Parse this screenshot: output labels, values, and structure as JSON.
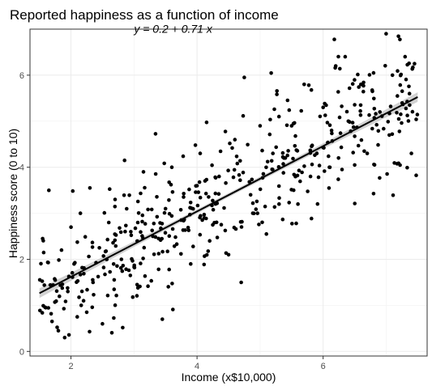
{
  "chart_data": {
    "type": "scatter",
    "title": "Reported happiness as a function of income",
    "xlabel": "Income (x$10,000)",
    "ylabel": "Happiness score (0 to 10)",
    "xlim": [
      1.35,
      7.65
    ],
    "ylim": [
      -0.1,
      7.0
    ],
    "x_ticks": [
      2,
      4,
      6
    ],
    "y_ticks": [
      0,
      2,
      4,
      6
    ],
    "x_tick_labels": [
      "2",
      "4",
      "6"
    ],
    "y_tick_labels": [
      "0",
      "2",
      "4",
      "6"
    ],
    "grid": true,
    "legend": "none",
    "annotation": "y = 0.2 + 0.71 x",
    "fit": {
      "intercept": 0.2,
      "slope": 0.71,
      "x_range": [
        1.5,
        7.5
      ],
      "color": "#000000",
      "band_color": "#bfbfbf"
    },
    "n_points": 498,
    "point_color": "#000000",
    "sample_points": [
      [
        1.55,
        2.45
      ],
      [
        1.6,
        0.95
      ],
      [
        1.65,
        3.5
      ],
      [
        1.7,
        0.65
      ],
      [
        1.75,
        1.55
      ],
      [
        1.8,
        0.45
      ],
      [
        1.85,
        2.2
      ],
      [
        1.9,
        0.3
      ],
      [
        1.95,
        1.3
      ],
      [
        2.0,
        2.7
      ],
      [
        2.05,
        1.9
      ],
      [
        2.1,
        0.75
      ],
      [
        2.15,
        3.0
      ],
      [
        2.2,
        1.1
      ],
      [
        2.25,
        0.85
      ],
      [
        2.3,
        3.55
      ],
      [
        2.35,
        1.5
      ],
      [
        2.45,
        2.25
      ],
      [
        2.5,
        0.6
      ],
      [
        2.6,
        2.8
      ],
      [
        2.7,
        3.3
      ],
      [
        2.8,
        2.0
      ],
      [
        2.85,
        4.15
      ],
      [
        2.95,
        2.6
      ],
      [
        3.05,
        1.45
      ],
      [
        3.15,
        3.9
      ],
      [
        3.3,
        2.5
      ],
      [
        3.45,
        0.7
      ],
      [
        3.5,
        3.1
      ],
      [
        3.6,
        4.0
      ],
      [
        3.75,
        2.85
      ],
      [
        3.9,
        1.9
      ],
      [
        4.0,
        3.6
      ],
      [
        4.05,
        4.3
      ],
      [
        4.2,
        2.4
      ],
      [
        4.35,
        3.8
      ],
      [
        4.5,
        2.1
      ],
      [
        4.6,
        4.6
      ],
      [
        4.7,
        1.5
      ],
      [
        4.75,
        5.95
      ],
      [
        4.85,
        3.4
      ],
      [
        5.0,
        4.9
      ],
      [
        5.1,
        2.55
      ],
      [
        5.2,
        3.95
      ],
      [
        5.3,
        5.1
      ],
      [
        5.4,
        4.2
      ],
      [
        5.5,
        4.9
      ],
      [
        5.6,
        3.2
      ],
      [
        5.7,
        5.8
      ],
      [
        5.8,
        3.8
      ],
      [
        5.9,
        4.3
      ],
      [
        6.0,
        5.3
      ],
      [
        6.1,
        4.0
      ],
      [
        6.2,
        6.2
      ],
      [
        6.3,
        3.95
      ],
      [
        6.35,
        6.4
      ],
      [
        6.4,
        5.0
      ],
      [
        6.5,
        4.05
      ],
      [
        6.6,
        5.8
      ],
      [
        6.7,
        4.3
      ],
      [
        6.8,
        6.05
      ],
      [
        6.9,
        5.2
      ],
      [
        7.0,
        6.9
      ],
      [
        7.05,
        4.7
      ],
      [
        7.1,
        6.0
      ],
      [
        7.2,
        5.05
      ],
      [
        7.3,
        6.4
      ],
      [
        7.4,
        4.3
      ],
      [
        7.45,
        6.25
      ]
    ]
  }
}
